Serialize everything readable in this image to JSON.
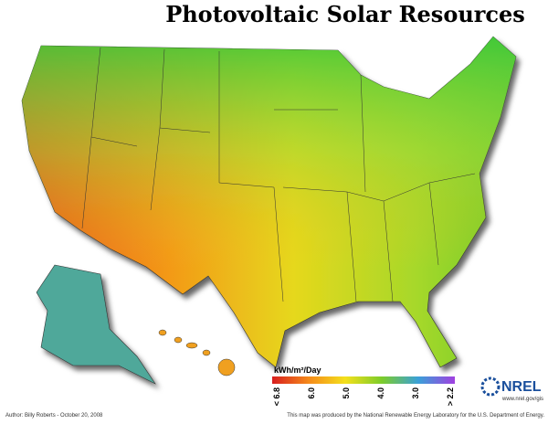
{
  "title": "Photovoltaic Solar Resources",
  "legend": {
    "title": "kWh/m²/Day",
    "labels": [
      "< 6.8",
      "6.0",
      "5.0",
      "4.0",
      "3.0",
      "> 2.2"
    ]
  },
  "footer": {
    "author": "Author: Billy Roberts - October 20, 2008",
    "credit": "This map was produced by the National Renewable Energy Laboratory for the U.S. Department of Energy."
  },
  "logo": {
    "name": "NREL",
    "url": "www.nrel.gov/gis"
  }
}
